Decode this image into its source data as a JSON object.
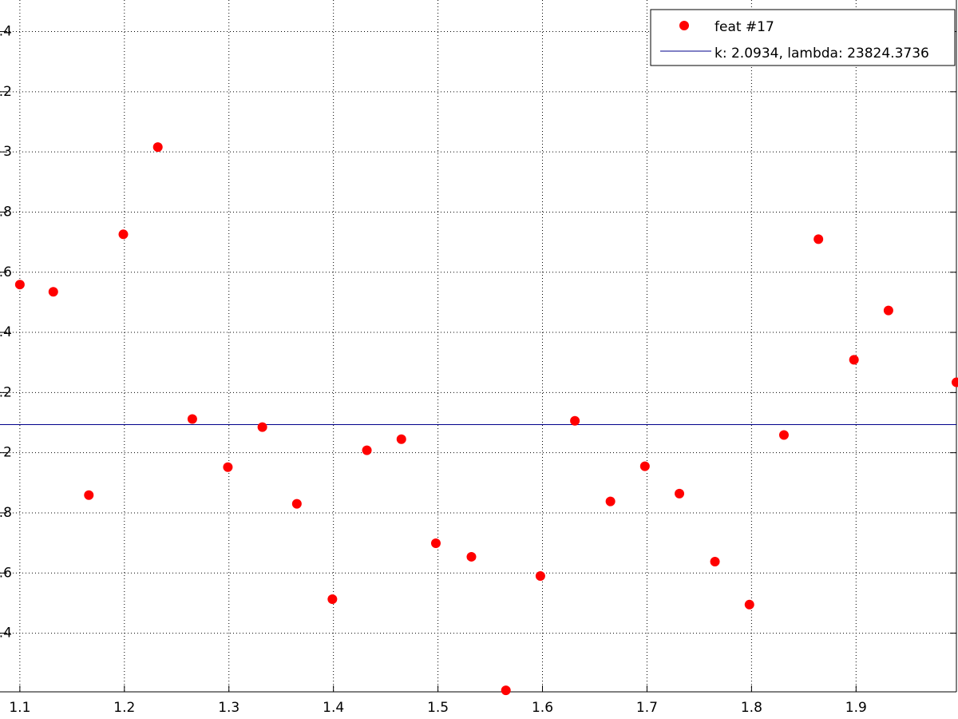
{
  "chart_data": {
    "type": "scatter",
    "series": [
      {
        "name": "feat #17",
        "color": "#ff0000",
        "x": [
          1.1,
          1.132,
          1.166,
          1.199,
          1.232,
          1.265,
          1.299,
          1.332,
          1.365,
          1.399,
          1.432,
          1.465,
          1.498,
          1.532,
          1.565,
          1.598,
          1.631,
          1.665,
          1.698,
          1.731,
          1.765,
          1.798,
          1.831,
          1.864,
          1.898,
          1.931,
          1.996
        ],
        "values": [
          2.559,
          2.535,
          1.859,
          2.726,
          3.016,
          2.112,
          1.952,
          2.085,
          1.83,
          1.513,
          2.008,
          2.045,
          1.699,
          1.654,
          1.21,
          1.59,
          2.106,
          1.838,
          1.955,
          1.864,
          1.638,
          1.495,
          2.059,
          2.71,
          2.309,
          2.473,
          2.234
        ]
      }
    ],
    "hline": {
      "name": "k: 2.0934, lambda: 23824.3736",
      "value": 2.0934,
      "color": "#00008b"
    },
    "xlim": [
      1.081,
      1.996
    ],
    "ylim": [
      1.205,
      3.505
    ],
    "xticks": [
      1.1,
      1.2,
      1.3,
      1.4,
      1.5,
      1.6,
      1.7,
      1.8,
      1.9
    ],
    "yticks": [
      {
        "value": 1.4,
        "label": ".4"
      },
      {
        "value": 1.6,
        "label": ".6"
      },
      {
        "value": 1.8,
        "label": ".8"
      },
      2,
      {
        "value": 2.2,
        "label": ".2"
      },
      {
        "value": 2.4,
        "label": ".4"
      },
      {
        "value": 2.6,
        "label": ".6"
      },
      {
        "value": 2.8,
        "label": ".8"
      },
      3,
      {
        "value": 3.2,
        "label": ".2"
      },
      {
        "value": 3.4,
        "label": ".4"
      }
    ],
    "grid": true,
    "legend": "top-right"
  }
}
